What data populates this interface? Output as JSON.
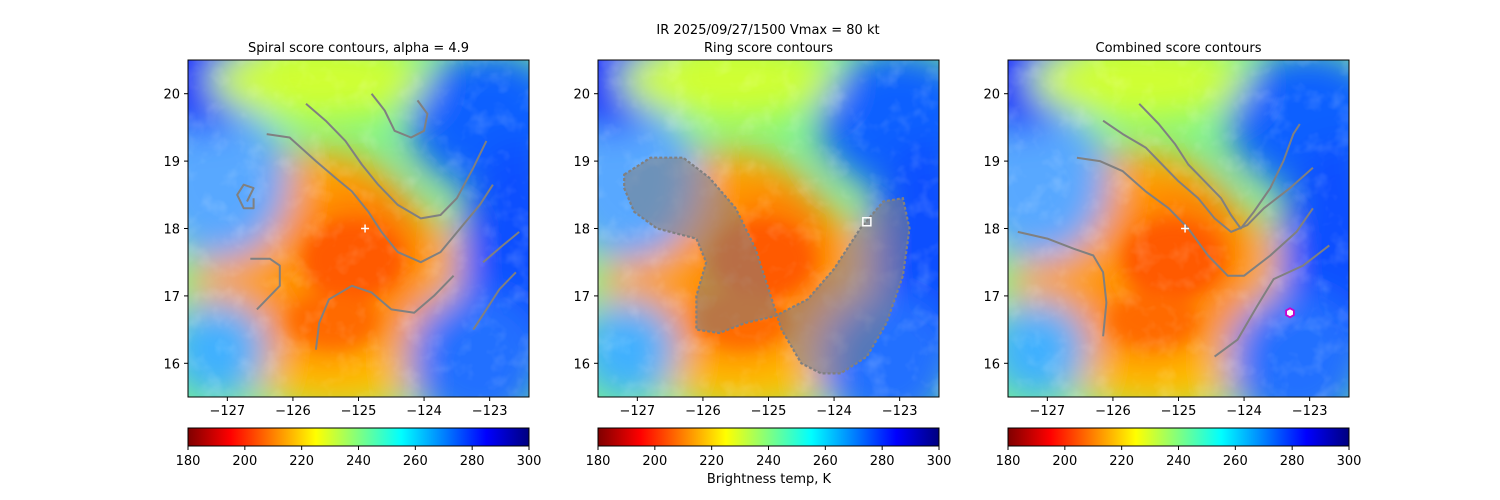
{
  "figure": {
    "suptitle_line1": "IR  2025/09/27/1500    Vmax = 80 kt",
    "colorbar_label": "Brightness temp, K"
  },
  "colormap": {
    "name": "jet_r",
    "stops": [
      "#7f0000",
      "#ff0000",
      "#ff8000",
      "#ffff00",
      "#80ff80",
      "#00ffff",
      "#0080ff",
      "#0000ff",
      "#00007f"
    ]
  },
  "colors": {
    "contour": "#808080",
    "center_marker": "#ffffff",
    "ring_marker": "#ffffff",
    "combined_marker": "#cc00cc"
  },
  "chart_data": [
    {
      "type": "heatmap",
      "title": "Spiral score contours, alpha =  4.9",
      "xlim": [
        -127.6,
        -122.4
      ],
      "ylim": [
        15.5,
        20.5
      ],
      "xticks": [
        -127,
        -126,
        -125,
        -124,
        -123
      ],
      "xtick_labels": [
        "−127",
        "−126",
        "−125",
        "−124",
        "−123"
      ],
      "yticks": [
        16,
        17,
        18,
        19,
        20
      ],
      "ytick_labels": [
        "16",
        "17",
        "18",
        "19",
        "20"
      ],
      "colorbar": {
        "range": [
          180,
          300
        ],
        "ticks": [
          180,
          200,
          220,
          240,
          260,
          280,
          300
        ]
      },
      "markers": [
        {
          "symbol": "plus",
          "x": -124.9,
          "y": 18.0
        }
      ],
      "contours": [
        [
          [
            -125.8,
            19.85
          ],
          [
            -125.5,
            19.6
          ],
          [
            -125.2,
            19.3
          ],
          [
            -124.95,
            18.95
          ],
          [
            -124.7,
            18.65
          ],
          [
            -124.4,
            18.35
          ],
          [
            -124.05,
            18.15
          ],
          [
            -123.75,
            18.2
          ],
          [
            -123.5,
            18.45
          ],
          [
            -123.25,
            18.9
          ],
          [
            -123.05,
            19.3
          ]
        ],
        [
          [
            -124.8,
            20.0
          ],
          [
            -124.6,
            19.75
          ],
          [
            -124.45,
            19.45
          ],
          [
            -124.2,
            19.35
          ],
          [
            -124.0,
            19.45
          ],
          [
            -123.95,
            19.7
          ],
          [
            -124.1,
            19.9
          ]
        ],
        [
          [
            -126.4,
            19.4
          ],
          [
            -126.05,
            19.35
          ],
          [
            -125.65,
            19.0
          ],
          [
            -125.35,
            18.75
          ],
          [
            -125.1,
            18.55
          ],
          [
            -124.85,
            18.25
          ],
          [
            -124.65,
            17.95
          ],
          [
            -124.4,
            17.65
          ],
          [
            -124.05,
            17.5
          ],
          [
            -123.75,
            17.65
          ],
          [
            -123.45,
            18.0
          ],
          [
            -123.15,
            18.35
          ],
          [
            -122.95,
            18.65
          ]
        ],
        [
          [
            -123.1,
            17.5
          ],
          [
            -122.8,
            17.75
          ],
          [
            -122.55,
            17.95
          ]
        ],
        [
          [
            -126.65,
            17.55
          ],
          [
            -126.35,
            17.55
          ],
          [
            -126.2,
            17.45
          ],
          [
            -126.2,
            17.15
          ],
          [
            -126.4,
            16.95
          ],
          [
            -126.55,
            16.8
          ]
        ],
        [
          [
            -125.65,
            16.2
          ],
          [
            -125.6,
            16.6
          ],
          [
            -125.45,
            16.95
          ],
          [
            -125.1,
            17.15
          ],
          [
            -124.8,
            17.05
          ],
          [
            -124.5,
            16.8
          ],
          [
            -124.15,
            16.75
          ],
          [
            -123.85,
            17.0
          ],
          [
            -123.55,
            17.3
          ]
        ],
        [
          [
            -122.6,
            17.35
          ],
          [
            -122.85,
            17.1
          ],
          [
            -123.05,
            16.8
          ],
          [
            -123.25,
            16.5
          ]
        ],
        [
          [
            -126.7,
            18.4
          ],
          [
            -126.6,
            18.6
          ],
          [
            -126.75,
            18.65
          ],
          [
            -126.85,
            18.5
          ],
          [
            -126.75,
            18.3
          ],
          [
            -126.6,
            18.3
          ],
          [
            -126.6,
            18.45
          ]
        ]
      ]
    },
    {
      "type": "heatmap",
      "title": "Ring score contours",
      "xlim": [
        -127.6,
        -122.4
      ],
      "ylim": [
        15.5,
        20.5
      ],
      "xticks": [
        -127,
        -126,
        -125,
        -124,
        -123
      ],
      "xtick_labels": [
        "−127",
        "−126",
        "−125",
        "−124",
        "−123"
      ],
      "yticks": [
        16,
        17,
        18,
        19,
        20
      ],
      "ytick_labels": [
        "16",
        "17",
        "18",
        "19",
        "20"
      ],
      "colorbar": {
        "range": [
          180,
          300
        ],
        "ticks": [
          180,
          200,
          220,
          240,
          260,
          280,
          300
        ]
      },
      "markers": [
        {
          "symbol": "square",
          "x": -123.5,
          "y": 18.1
        }
      ],
      "ring_regions": [
        [
          [
            -127.2,
            18.8
          ],
          [
            -126.8,
            19.05
          ],
          [
            -126.3,
            19.05
          ],
          [
            -125.9,
            18.75
          ],
          [
            -125.5,
            18.3
          ],
          [
            -125.2,
            17.7
          ],
          [
            -125.0,
            17.1
          ],
          [
            -124.8,
            16.5
          ],
          [
            -124.5,
            16.0
          ],
          [
            -124.2,
            15.85
          ],
          [
            -123.9,
            15.85
          ],
          [
            -123.5,
            16.1
          ],
          [
            -123.2,
            16.6
          ],
          [
            -122.95,
            17.3
          ],
          [
            -122.85,
            18.0
          ],
          [
            -122.95,
            18.45
          ],
          [
            -123.25,
            18.4
          ],
          [
            -123.6,
            18.0
          ],
          [
            -124.0,
            17.4
          ],
          [
            -124.4,
            16.95
          ],
          [
            -124.9,
            16.7
          ],
          [
            -125.35,
            16.6
          ],
          [
            -125.75,
            16.45
          ],
          [
            -126.1,
            16.5
          ],
          [
            -126.1,
            17.0
          ],
          [
            -125.95,
            17.5
          ],
          [
            -126.1,
            17.85
          ],
          [
            -126.7,
            18.0
          ],
          [
            -127.05,
            18.25
          ],
          [
            -127.2,
            18.6
          ]
        ]
      ],
      "contours": []
    },
    {
      "type": "heatmap",
      "title": "Combined score contours",
      "xlim": [
        -127.6,
        -122.4
      ],
      "ylim": [
        15.5,
        20.5
      ],
      "xticks": [
        -127,
        -126,
        -125,
        -124,
        -123
      ],
      "xtick_labels": [
        "−127",
        "−126",
        "−125",
        "−124",
        "−123"
      ],
      "yticks": [
        16,
        17,
        18,
        19,
        20
      ],
      "ytick_labels": [
        "16",
        "17",
        "18",
        "19",
        "20"
      ],
      "colorbar": {
        "range": [
          180,
          300
        ],
        "ticks": [
          180,
          200,
          220,
          240,
          260,
          280,
          300
        ]
      },
      "markers": [
        {
          "symbol": "plus",
          "x": -124.9,
          "y": 18.0
        },
        {
          "symbol": "hexagon",
          "x": -123.3,
          "y": 16.75
        }
      ],
      "contours": [
        [
          [
            -125.6,
            19.85
          ],
          [
            -125.3,
            19.55
          ],
          [
            -125.05,
            19.25
          ],
          [
            -124.85,
            18.95
          ],
          [
            -124.6,
            18.7
          ],
          [
            -124.35,
            18.45
          ],
          [
            -124.2,
            18.2
          ],
          [
            -124.05,
            18.0
          ],
          [
            -123.85,
            18.25
          ],
          [
            -123.6,
            18.6
          ],
          [
            -123.4,
            19.0
          ],
          [
            -123.25,
            19.4
          ],
          [
            -123.15,
            19.55
          ]
        ],
        [
          [
            -126.15,
            19.6
          ],
          [
            -125.85,
            19.4
          ],
          [
            -125.5,
            19.2
          ],
          [
            -125.25,
            18.95
          ],
          [
            -125.0,
            18.7
          ],
          [
            -124.7,
            18.45
          ],
          [
            -124.45,
            18.15
          ],
          [
            -124.2,
            17.95
          ],
          [
            -123.95,
            18.05
          ],
          [
            -123.7,
            18.3
          ],
          [
            -123.3,
            18.6
          ],
          [
            -122.95,
            18.9
          ]
        ],
        [
          [
            -126.55,
            19.05
          ],
          [
            -126.2,
            19.0
          ],
          [
            -125.85,
            18.85
          ],
          [
            -125.5,
            18.55
          ],
          [
            -125.15,
            18.3
          ],
          [
            -124.85,
            18.0
          ],
          [
            -124.55,
            17.6
          ],
          [
            -124.25,
            17.3
          ],
          [
            -124.0,
            17.3
          ],
          [
            -123.6,
            17.6
          ],
          [
            -123.2,
            17.95
          ],
          [
            -122.95,
            18.3
          ]
        ],
        [
          [
            -127.45,
            17.95
          ],
          [
            -127.0,
            17.85
          ],
          [
            -126.6,
            17.7
          ],
          [
            -126.3,
            17.6
          ],
          [
            -126.15,
            17.35
          ],
          [
            -126.1,
            16.9
          ],
          [
            -126.15,
            16.4
          ]
        ],
        [
          [
            -124.45,
            16.1
          ],
          [
            -124.1,
            16.35
          ],
          [
            -123.8,
            16.85
          ],
          [
            -123.55,
            17.25
          ],
          [
            -123.1,
            17.45
          ],
          [
            -122.7,
            17.75
          ]
        ]
      ]
    }
  ]
}
